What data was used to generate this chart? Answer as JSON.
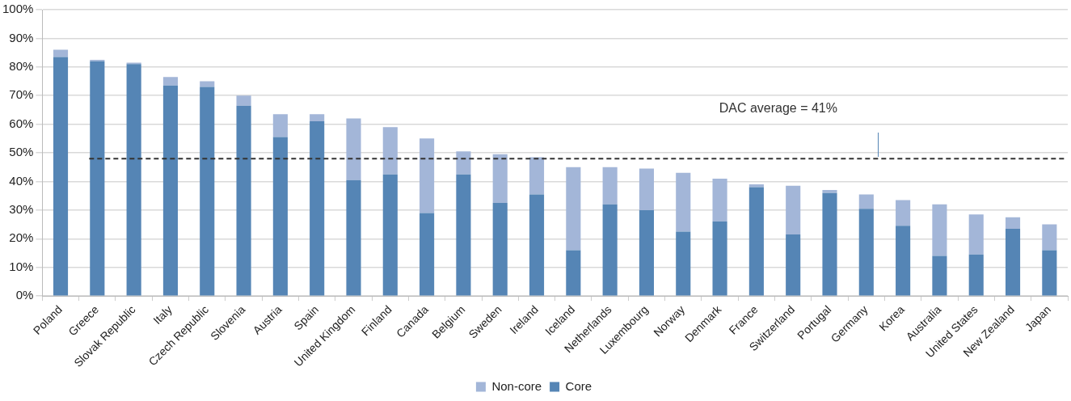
{
  "chart_data": {
    "type": "bar",
    "stacked": true,
    "categories": [
      "Poland",
      "Greece",
      "Slovak Republic",
      "Italy",
      "Czech Republic",
      "Slovenia",
      "Austria",
      "Spain",
      "United Kingdom",
      "Finland",
      "Canada",
      "Belgium",
      "Sweden",
      "Ireland",
      "Iceland",
      "Netherlands",
      "Luxembourg",
      "Norway",
      "Denmark",
      "France",
      "Switzerland",
      "Portugal",
      "Germany",
      "Korea",
      "Australia",
      "United States",
      "New Zealand",
      "Japan"
    ],
    "series": [
      {
        "name": "Core",
        "color": "#5585b5",
        "values": [
          83.5,
          82,
          81,
          73.5,
          73,
          66.5,
          55.5,
          61,
          40.5,
          42.5,
          29,
          42.5,
          32.5,
          35.5,
          16,
          32,
          30,
          22.5,
          26,
          38,
          21.5,
          36,
          30.5,
          24.5,
          14,
          14.5,
          23.5,
          16
        ]
      },
      {
        "name": "Non-core",
        "color": "#a3b6d8",
        "values": [
          2.5,
          0.5,
          0.5,
          3,
          2,
          3.5,
          8,
          2.5,
          21.5,
          16.5,
          26,
          8,
          17,
          13,
          29,
          13,
          14.5,
          20.5,
          15,
          1,
          17,
          1,
          5,
          9,
          18,
          14,
          4,
          9
        ]
      }
    ],
    "ylim": [
      0,
      100
    ],
    "yticks": [
      {
        "value": 0,
        "label": "0%"
      },
      {
        "value": 10,
        "label": "10%"
      },
      {
        "value": 20,
        "label": "20%"
      },
      {
        "value": 30,
        "label": "30%"
      },
      {
        "value": 40,
        "label": "40%"
      },
      {
        "value": 50,
        "label": "50%"
      },
      {
        "value": 60,
        "label": "60%"
      },
      {
        "value": 70,
        "label": "70%"
      },
      {
        "value": 80,
        "label": "80%"
      },
      {
        "value": 90,
        "label": "90%"
      },
      {
        "value": 100,
        "label": "100%"
      }
    ],
    "grid": "y",
    "legend": "bottom",
    "ref_lines": [
      {
        "axis": "y",
        "value": 48,
        "color": "#333333",
        "line_style": "dashed"
      }
    ],
    "annotations": [
      "DAC average = 41%"
    ]
  }
}
